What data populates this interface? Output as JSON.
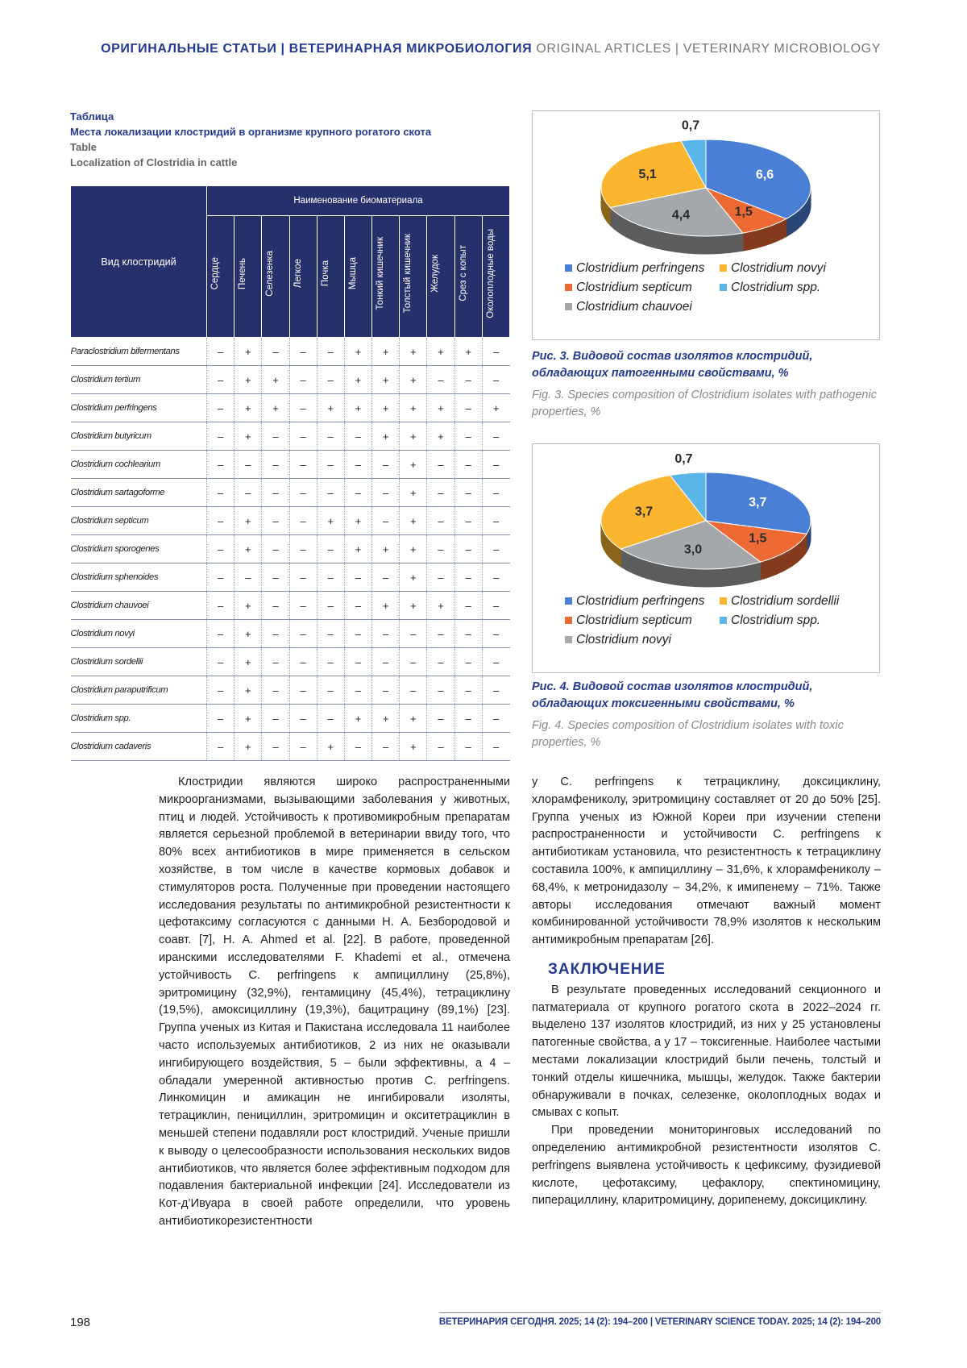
{
  "header": {
    "ru": "ОРИГИНАЛЬНЫЕ СТАТЬИ | ВЕТЕРИНАРНАЯ МИКРОБИОЛОГИЯ",
    "en": "ORIGINAL ARTICLES | VETERINARY MICROBIOLOGY"
  },
  "table": {
    "label_ru": "Таблица",
    "title_ru": "Места локализации клостридий в организме крупного рогатого скота",
    "label_en": "Table",
    "title_en": "Localization of Clostridia in cattle",
    "row_header": "Вид клостридий",
    "group_header": "Наименование биоматериала",
    "columns": [
      "Сердце",
      "Печень",
      "Селезенка",
      "Легкое",
      "Почка",
      "Мышца",
      "Тонкий кишечник",
      "Толстый кишечник",
      "Желудок",
      "Срез с копыт",
      "Околоплодные воды"
    ],
    "rows": [
      {
        "name": "Paraclostridium bifermentans",
        "cells": [
          "–",
          "+",
          "–",
          "–",
          "–",
          "+",
          "+",
          "+",
          "+",
          "+",
          "–"
        ]
      },
      {
        "name": "Clostridium tertium",
        "cells": [
          "–",
          "+",
          "+",
          "–",
          "–",
          "+",
          "+",
          "+",
          "–",
          "–",
          "–"
        ]
      },
      {
        "name": "Clostridium perfringens",
        "cells": [
          "–",
          "+",
          "+",
          "–",
          "+",
          "+",
          "+",
          "+",
          "+",
          "–",
          "+"
        ]
      },
      {
        "name": "Clostridium butyricum",
        "cells": [
          "–",
          "+",
          "–",
          "–",
          "–",
          "–",
          "+",
          "+",
          "+",
          "–",
          "–"
        ]
      },
      {
        "name": "Clostridium cochlearium",
        "cells": [
          "–",
          "–",
          "–",
          "–",
          "–",
          "–",
          "–",
          "+",
          "–",
          "–",
          "–"
        ]
      },
      {
        "name": "Clostridium sartagoforme",
        "cells": [
          "–",
          "–",
          "–",
          "–",
          "–",
          "–",
          "–",
          "+",
          "–",
          "–",
          "–"
        ]
      },
      {
        "name": "Clostridium septicum",
        "cells": [
          "–",
          "+",
          "–",
          "–",
          "+",
          "+",
          "–",
          "+",
          "–",
          "–",
          "–"
        ]
      },
      {
        "name": "Clostridium sporogenes",
        "cells": [
          "–",
          "+",
          "–",
          "–",
          "–",
          "+",
          "+",
          "+",
          "–",
          "–",
          "–"
        ]
      },
      {
        "name": "Clostridium sphenoides",
        "cells": [
          "–",
          "–",
          "–",
          "–",
          "–",
          "–",
          "–",
          "+",
          "–",
          "–",
          "–"
        ]
      },
      {
        "name": "Clostridium chauvoei",
        "cells": [
          "–",
          "+",
          "–",
          "–",
          "–",
          "–",
          "+",
          "+",
          "+",
          "–",
          "–"
        ]
      },
      {
        "name": "Clostridium novyi",
        "cells": [
          "–",
          "+",
          "–",
          "–",
          "–",
          "–",
          "–",
          "–",
          "–",
          "–",
          "–"
        ]
      },
      {
        "name": "Clostridium sordellii",
        "cells": [
          "–",
          "+",
          "–",
          "–",
          "–",
          "–",
          "–",
          "–",
          "–",
          "–",
          "–"
        ]
      },
      {
        "name": "Clostridium paraputrificum",
        "cells": [
          "–",
          "+",
          "–",
          "–",
          "–",
          "–",
          "–",
          "–",
          "–",
          "–",
          "–"
        ]
      },
      {
        "name": "Clostridium spp.",
        "cells": [
          "–",
          "+",
          "–",
          "–",
          "–",
          "+",
          "+",
          "+",
          "–",
          "–",
          "–"
        ]
      },
      {
        "name": "Clostridium cadaveris",
        "cells": [
          "–",
          "+",
          "–",
          "–",
          "+",
          "–",
          "–",
          "+",
          "–",
          "–",
          "–"
        ]
      }
    ]
  },
  "chart_data": [
    {
      "type": "pie",
      "title": "Рис. 3. Видовой состав изолятов клостридий, обладающих патогенными свойствами, %",
      "subtitle": "Fig. 3. Species composition of Clostridium isolates with pathogenic properties, %",
      "categories": [
        "Clostridium perfringens",
        "Clostridium septicum",
        "Clostridium chauvoei",
        "Clostridium novyi",
        "Clostridium spp."
      ],
      "values": [
        6.6,
        1.5,
        4.4,
        5.1,
        0.7
      ],
      "value_labels": [
        "6,6",
        "1,5",
        "4,4",
        "5,1",
        "0,7"
      ],
      "colors": [
        "#4a7fd6",
        "#ee6a35",
        "#a5a8ab",
        "#fbb52e",
        "#5ab6e8"
      ]
    },
    {
      "type": "pie",
      "title": "Рис. 4. Видовой состав изолятов клостридий, обладающих токсигенными свойствами, %",
      "subtitle": "Fig. 4. Species composition of Clostridium isolates with toxic properties, %",
      "categories": [
        "Clostridium perfringens",
        "Clostridium septicum",
        "Clostridium novyi",
        "Clostridium sordellii",
        "Clostridium spp."
      ],
      "values": [
        3.7,
        1.5,
        3.0,
        3.7,
        0.7
      ],
      "value_labels": [
        "3,7",
        "1,5",
        "3,0",
        "3,7",
        "0,7"
      ],
      "colors": [
        "#4a7fd6",
        "#ee6a35",
        "#a5a8ab",
        "#fbb52e",
        "#5ab6e8"
      ]
    }
  ],
  "body": {
    "left": [
      "Клостридии являются широко распространенными микроорганизмами, вызывающими заболевания у животных, птиц и людей. Устойчивость к противомикробным препаратам является серьезной проблемой в ветеринарии ввиду того, что 80% всех антибиотиков в мире применяется в сельском хозяйстве, в том числе в качестве кормовых добавок и стимуляторов роста. Полученные при проведении настоящего исследования результаты по антимикробной резистентности к цефотаксиму согласуются с данными Н. А. Безбородовой и соавт. [7], H. A. Ahmed et al. [22]. В работе, проведенной иранскими исследователями F. Khademi et al., отмечена устойчивость C. perfringens к ампициллину (25,8%), эритромицину (32,9%), гентамицину (45,4%), тетрациклину (19,5%), амоксициллину (19,3%), бацитрацину (89,1%) [23]. Группа ученых из Китая и Пакистана исследовала 11 наиболее часто используемых антибиотиков, 2 из них не оказывали ингибирующего воздействия, 5 – были эффективны, а 4 – обладали умеренной активностью против C. perfringens. Линкомицин и амикацин не ингибировали изоляты, тетрациклин, пенициллин, эритромицин и окситетрациклин в меньшей степени подавляли рост клостридий. Ученые пришли к выводу о целесообразности использования нескольких видов антибиотиков, что является более эффективным подходом для подавления бактериальной инфекции [24]. Исследователи из Кот-д’Ивуара в своей работе определили, что уровень антибиотикорезистентности"
    ],
    "right": [
      "у C. perfringens к тетрациклину, доксициклину, хлорамфениколу, эритромицину составляет от 20 до 50% [25]. Группа ученых из Южной Кореи при изучении степени распространенности и устойчивости C. perfringens к антибиотикам установила, что резистентность к тетрациклину составила 100%, к ампициллину – 31,6%, к хлорамфениколу – 68,4%, к метронидазолу – 34,2%, к имипенему – 71%. Также авторы исследования отмечают важный момент комбинированной устойчивости 78,9% изолятов к нескольким антимикробным препаратам [26]."
    ],
    "heading": "ЗАКЛЮЧЕНИЕ",
    "conclusion": [
      "В результате проведенных исследований секционного и патматериала от крупного рогатого скота в 2022–2024 гг. выделено 137 изолятов клостридий, из них у 25 установлены патогенные свойства, а у 17 – токсигенные. Наиболее частыми местами локализации клостридий были печень, толстый и тонкий отделы кишечника, мышцы, желудок. Также бактерии обнаруживали в почках, селезенке, околоплодных водах и смывах с копыт.",
      "При проведении мониторинговых исследований по определению антимикробной резистентности изолятов C. perfringens выявлена устойчивость к цефиксиму, фузидиевой кислоте, цефотаксиму, цефаклору, спектиномицину, пиперациллину, кларитромицину, дорипенему, доксициклину."
    ]
  },
  "footer": {
    "page": "198",
    "journal": "ВЕТЕРИНАРИЯ СЕГОДНЯ. 2025; 14 (2): 194–200 | VETERINARY SCIENCE TODAY. 2025; 14 (2): 194–200"
  }
}
